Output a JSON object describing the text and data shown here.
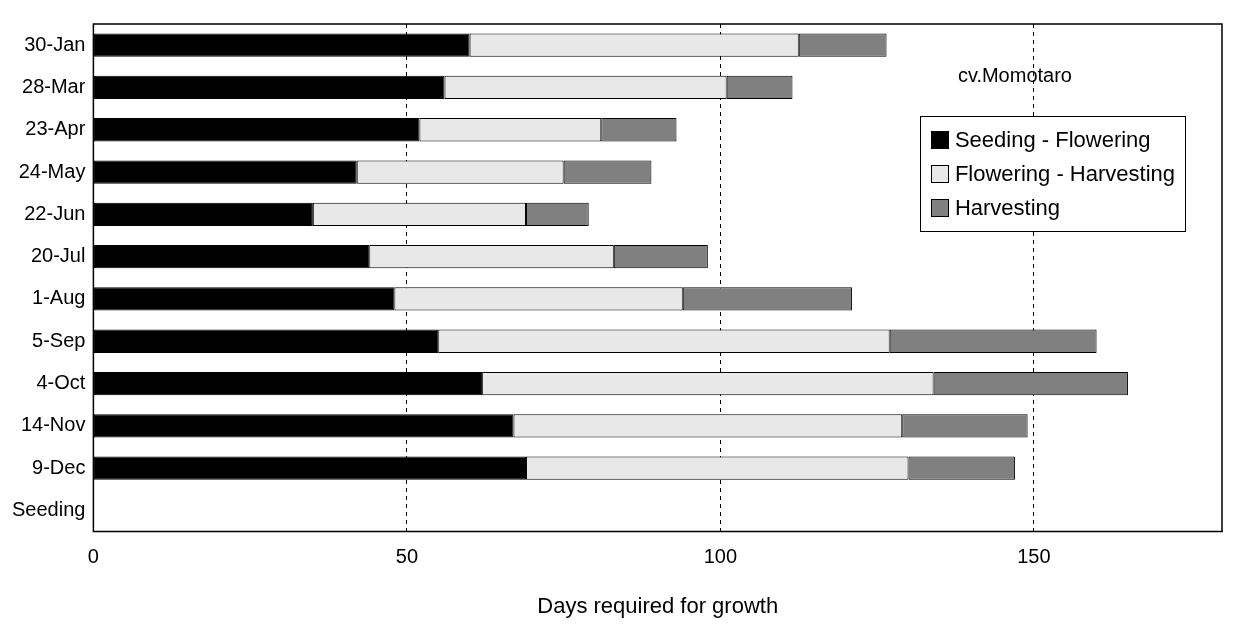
{
  "chart_data": {
    "type": "bar",
    "orientation": "horizontal",
    "stacked": true,
    "xlabel": "Days required for growth",
    "categories": [
      "30-Jan",
      "28-Mar",
      "23-Apr",
      "24-May",
      "22-Jun",
      "20-Jul",
      "1-Aug",
      "5-Sep",
      "4-Oct",
      "14-Nov",
      "9-Dec",
      "Seeding"
    ],
    "series": [
      {
        "name": "Seeding - Flowering",
        "color": "#000000",
        "values": [
          60,
          56,
          52,
          42,
          35,
          44,
          48,
          55,
          62,
          67,
          69,
          null
        ]
      },
      {
        "name": "Flowering - Harvesting",
        "color": "#e8e8e8",
        "values": [
          52.5,
          45,
          29,
          33,
          34,
          39,
          46,
          72,
          72,
          62,
          61,
          null
        ]
      },
      {
        "name": "Harvesting",
        "color": "#808080",
        "values": [
          14,
          10.5,
          12,
          14,
          10,
          15,
          27,
          33,
          31,
          20,
          17,
          null
        ]
      }
    ],
    "xlim": [
      0,
      180
    ],
    "xticks": [
      0,
      50,
      100,
      150
    ],
    "grid": "x",
    "legend": "top right",
    "annotations": [
      "cv.Momotaro"
    ]
  }
}
